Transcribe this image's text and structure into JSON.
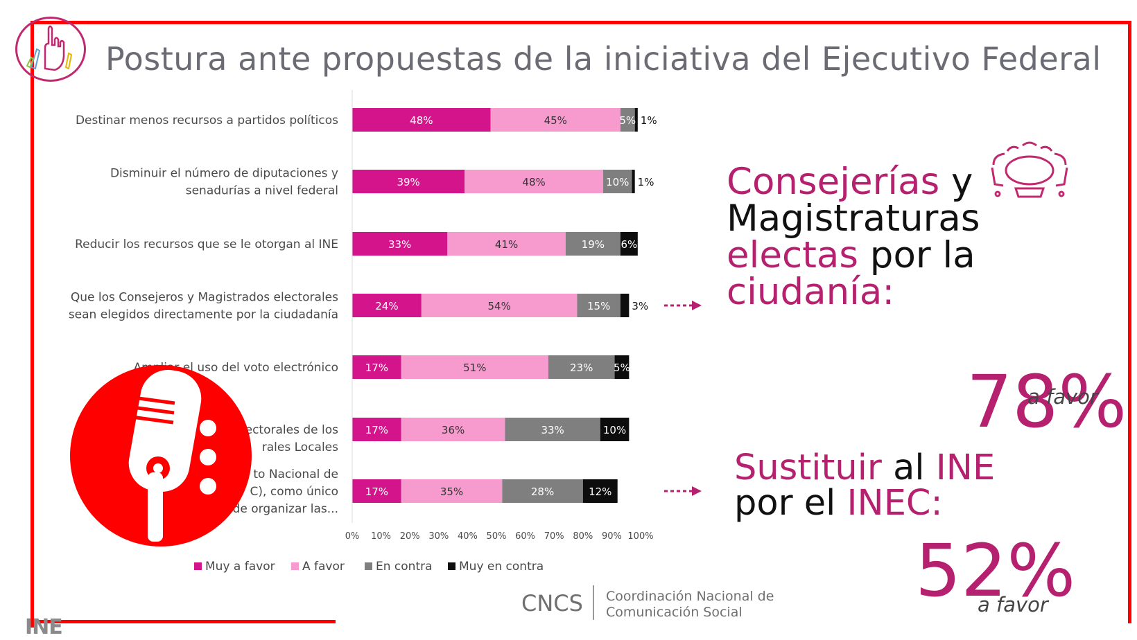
{
  "title": "Postura ante propuestas de la iniciativa del Ejecutivo Federal",
  "colors": {
    "muy_a_favor": "#d3148b",
    "a_favor": "#f79bcf",
    "en_contra": "#7f7f7f",
    "muy_en_contra": "#0d0d0d",
    "accent": "#b5216e",
    "frame": "#ff0000"
  },
  "chart_data": {
    "type": "bar",
    "orientation": "horizontal",
    "stacked": true,
    "categories": [
      [
        "Destinar menos recursos a partidos políticos"
      ],
      [
        "Disminuir el número de diputaciones y",
        "senadurías a nivel federal"
      ],
      [
        "Reducir los recursos que se le otorgan al INE"
      ],
      [
        "Que los Consejeros y Magistrados electorales",
        "sean elegidos directamente por la ciudadanía"
      ],
      [
        "Ampliar el uso del voto electrónico"
      ],
      [
        "",
        "lectorales de los",
        "rales Locales"
      ],
      [
        "to Nacional de",
        "C), como único",
        "o de organizar las..."
      ]
    ],
    "series": [
      {
        "name": "Muy a favor",
        "values": [
          48,
          39,
          33,
          24,
          17,
          17,
          17
        ]
      },
      {
        "name": "A favor",
        "values": [
          45,
          48,
          41,
          54,
          51,
          36,
          35
        ]
      },
      {
        "name": "En contra",
        "values": [
          5,
          10,
          19,
          15,
          23,
          33,
          28
        ]
      },
      {
        "name": "Muy en contra",
        "values": [
          1,
          1,
          6,
          3,
          5,
          10,
          12
        ]
      }
    ],
    "xlim": [
      0,
      100
    ],
    "xticks": [
      "0%",
      "10%",
      "20%",
      "30%",
      "40%",
      "50%",
      "60%",
      "70%",
      "80%",
      "90%",
      "100%"
    ],
    "legend_position": "bottom"
  },
  "callouts": {
    "c1": {
      "lines": [
        [
          {
            "text": "Consejerías",
            "hl": true
          },
          {
            "text": " y",
            "hl": false
          }
        ],
        [
          {
            "text": "Magistraturas",
            "hl": false
          }
        ],
        [
          {
            "text": "electas",
            "hl": true
          },
          {
            "text": " por la",
            "hl": false
          }
        ],
        [
          {
            "text": "ciudanía:",
            "hl": true
          }
        ]
      ],
      "value": "78%",
      "favor": "a favor"
    },
    "c2": {
      "lines": [
        [
          {
            "text": "Sustituir",
            "hl": true
          },
          {
            "text": " al ",
            "hl": false
          },
          {
            "text": "INE",
            "hl": true
          }
        ],
        [
          {
            "text": "por el ",
            "hl": false
          },
          {
            "text": "INEC:",
            "hl": true
          }
        ]
      ],
      "value": "52%",
      "favor": "a favor"
    }
  },
  "footer": {
    "acronym": "CNCS",
    "org_line1": "Coordinación Nacional de",
    "org_line2": "Comunicación Social",
    "logo_text": "INE"
  }
}
